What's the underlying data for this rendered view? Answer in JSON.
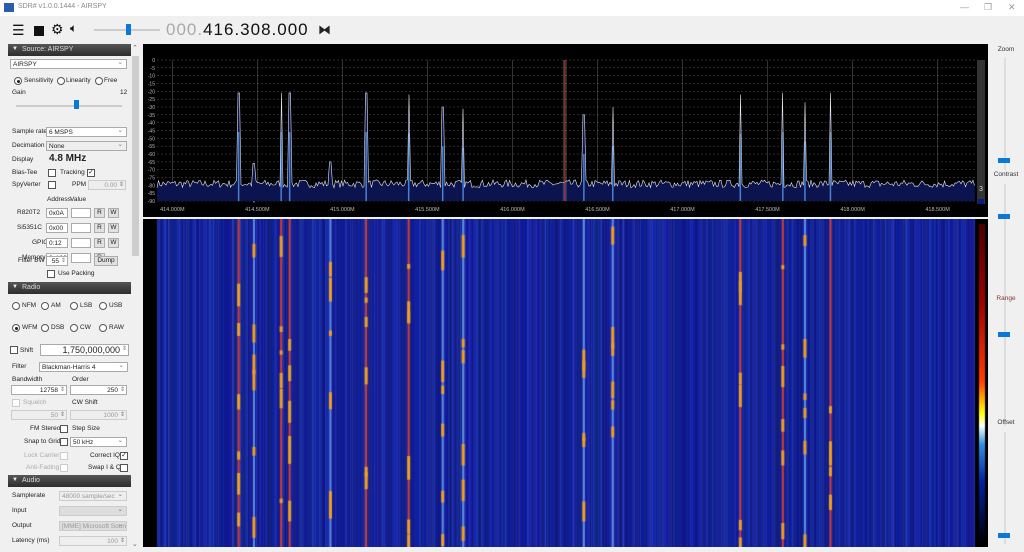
{
  "window": {
    "title": "SDR# v1.0.0.1444 - AIRSPY",
    "controls": [
      "minimize",
      "restore",
      "close"
    ]
  },
  "toolbar": {
    "icons": [
      "menu-icon",
      "stop-icon",
      "gear-icon",
      "speaker-icon"
    ],
    "volume_level": 0.5,
    "frequency_dim": "000.",
    "frequency": "416.308.000",
    "tune_icon": "center-tune-icon"
  },
  "source": {
    "header": "Source: AIRSPY",
    "device": "AIRSPY",
    "modes": [
      "Sensitivity",
      "Linearity",
      "Free"
    ],
    "mode_selected": "Sensitivity",
    "gain_label": "Gain",
    "gain_value": "12",
    "gain_level": 0.6,
    "sample_rate_label": "Sample rate",
    "sample_rate": "6 MSPS",
    "decimation_label": "Decimation",
    "decimation": "None",
    "display_label": "Display",
    "display_value": "4.8 MHz",
    "bias_tee_label": "Bias-Tee",
    "bias_tee": false,
    "tracking_label": "Tracking",
    "tracking": true,
    "spyverter_label": "SpyVerter",
    "spyverter": false,
    "ppm_label": "PPM",
    "ppm": "0.00",
    "address_label": "Address",
    "value_label": "Value",
    "registers": [
      {
        "name": "R820T2",
        "addr": "0x0A",
        "rw": [
          "R",
          "W"
        ]
      },
      {
        "name": "Si5351C",
        "addr": "0x00",
        "rw": [
          "R",
          "W"
        ]
      },
      {
        "name": "GPIO",
        "addr": "0:12",
        "rw": [
          "R",
          "W"
        ]
      },
      {
        "name": "Memory",
        "addr": "0x1008",
        "rw": [
          "R"
        ]
      }
    ],
    "filter_bw_label": "Filter BW",
    "filter_bw": "55",
    "dump_label": "Dump",
    "use_packing_label": "Use Packing",
    "use_packing": false
  },
  "radio": {
    "header": "Radio",
    "modes": [
      "NFM",
      "AM",
      "LSB",
      "USB",
      "WFM",
      "DSB",
      "CW",
      "RAW"
    ],
    "mode_selected": "WFM",
    "shift_label": "Shift",
    "shift_value": "1,750,000,000",
    "filter_label": "Filter",
    "filter": "Blackman-Harris 4",
    "bandwidth_label": "Bandwidth",
    "bandwidth": "12758",
    "order_label": "Order",
    "order": "250",
    "squelch_label": "Squelch",
    "squelch": "50",
    "cw_shift_label": "CW Shift",
    "cw_shift": "1000",
    "fm_stereo_label": "FM Stereo",
    "step_size_label": "Step Size",
    "snap_label": "Snap to Grid",
    "step_size": "50 kHz",
    "lock_carrier_label": "Lock Carrier",
    "correct_iq_label": "Correct IQ",
    "correct_iq": true,
    "anti_fading_label": "Anti-Fading",
    "swap_iq_label": "Swap I & Q"
  },
  "audio": {
    "header": "Audio",
    "samplerate_label": "Samplerate",
    "samplerate": "48000 sample/sec",
    "input_label": "Input",
    "input": "",
    "output_label": "Output",
    "output": "[MME] Microsoft Soun",
    "latency_label": "Latency (ms)",
    "latency": "100"
  },
  "sliders": {
    "zoom_label": "Zoom",
    "contrast_label": "Contrast",
    "range_label": "Range",
    "offset_label": "Offset",
    "zoom": 0.0,
    "contrast": 0.75,
    "range": 0.55,
    "offset": 0.0
  },
  "spectrum_badge": "3",
  "chart_data": {
    "type": "line",
    "xlabel": "",
    "ylabel": "",
    "x_unit": "MHz",
    "xlim": [
      413.91,
      418.72
    ],
    "ylim": [
      -90,
      0
    ],
    "yticks": [
      "0",
      "-5",
      "-10",
      "-15",
      "-20",
      "-25",
      "-30",
      "-35",
      "-40",
      "-45",
      "-50",
      "-55",
      "-60",
      "-65",
      "-70",
      "-75",
      "-80",
      "-85",
      "-90"
    ],
    "xticks": [
      "414.000M",
      "414.500M",
      "415.000M",
      "415.500M",
      "416.000M",
      "416.500M",
      "417.000M",
      "417.500M",
      "418.000M",
      "418.500M"
    ],
    "center_freq": 416.308,
    "noise_floor_db": -79,
    "grid": true,
    "peaks": [
      {
        "f": 414.39,
        "db": -21
      },
      {
        "f": 414.48,
        "db": -66
      },
      {
        "f": 414.64,
        "db": -21
      },
      {
        "f": 414.69,
        "db": -21
      },
      {
        "f": 414.93,
        "db": -65
      },
      {
        "f": 415.14,
        "db": -21
      },
      {
        "f": 415.39,
        "db": -22
      },
      {
        "f": 415.59,
        "db": -30
      },
      {
        "f": 415.71,
        "db": -31
      },
      {
        "f": 416.42,
        "db": -35
      },
      {
        "f": 416.59,
        "db": -30
      },
      {
        "f": 417.34,
        "db": -22
      },
      {
        "f": 417.59,
        "db": -21
      },
      {
        "f": 417.72,
        "db": -27
      },
      {
        "f": 417.87,
        "db": -21
      }
    ]
  }
}
